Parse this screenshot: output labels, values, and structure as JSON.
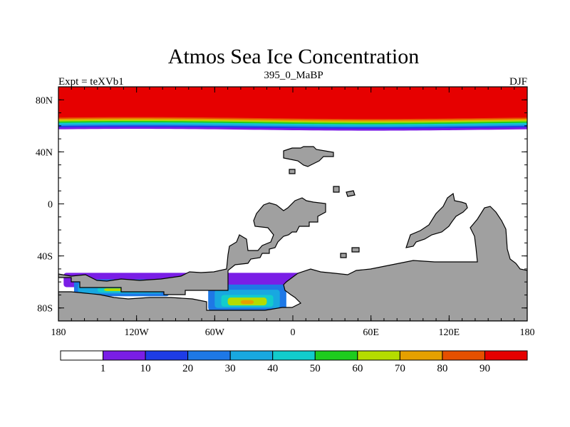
{
  "chart_data": {
    "type": "heatmap",
    "title": "Atmos Sea Ice Concentration",
    "left_label": "Expt = teXVb1",
    "center_label": "395_0_MaBP",
    "right_label": "DJF",
    "x_range": [
      -180,
      180
    ],
    "y_range": [
      -90,
      90
    ],
    "x_ticks": [
      {
        "value": -180,
        "label": "180"
      },
      {
        "value": -120,
        "label": "120W"
      },
      {
        "value": -60,
        "label": "60W"
      },
      {
        "value": 0,
        "label": "0"
      },
      {
        "value": 60,
        "label": "60E"
      },
      {
        "value": 120,
        "label": "120E"
      },
      {
        "value": 180,
        "label": "180"
      }
    ],
    "y_ticks": [
      {
        "value": 80,
        "label": "80N"
      },
      {
        "value": 40,
        "label": "40N"
      },
      {
        "value": 0,
        "label": "0"
      },
      {
        "value": -40,
        "label": "40S"
      },
      {
        "value": -80,
        "label": "80S"
      }
    ],
    "colorbar": {
      "levels": [
        "1",
        "10",
        "20",
        "30",
        "40",
        "50",
        "60",
        "70",
        "80",
        "90"
      ],
      "colors": [
        "#ffffff",
        "#7a1ee6",
        "#1e3ce6",
        "#1e78e6",
        "#18a8e0",
        "#12cccc",
        "#1ecc1e",
        "#b4dc00",
        "#e6a000",
        "#e65000",
        "#e60000"
      ]
    },
    "arctic_band": [
      {
        "value": 90,
        "lat_south": 66
      },
      {
        "value": 80,
        "lat_south": 65
      },
      {
        "value": 70,
        "lat_south": 64
      },
      {
        "value": 60,
        "lat_south": 63
      },
      {
        "value": 50,
        "lat_south": 62
      },
      {
        "value": 40,
        "lat_south": 61
      },
      {
        "value": 30,
        "lat_south": 60
      },
      {
        "value": 20,
        "lat_south": 59.5
      },
      {
        "value": 10,
        "lat_south": 58.5
      },
      {
        "value": 1,
        "lat_south": 57
      }
    ],
    "southern_ice_patches": [
      {
        "value": 1,
        "lon": [
          -176,
          7
        ],
        "lat": [
          -64,
          -53
        ]
      },
      {
        "value": 20,
        "lon": [
          -168,
          -95
        ],
        "lat": [
          -71,
          -58
        ]
      },
      {
        "value": 30,
        "lon": [
          -165,
          -100
        ],
        "lat": [
          -69,
          -61
        ]
      },
      {
        "value": 40,
        "lon": [
          -150,
          -112
        ],
        "lat": [
          -68,
          -64
        ]
      },
      {
        "value": 60,
        "lon": [
          -145,
          -130
        ],
        "lat": [
          -67,
          -65
        ]
      },
      {
        "value": 20,
        "lon": [
          -65,
          -5
        ],
        "lat": [
          -82,
          -62
        ]
      },
      {
        "value": 30,
        "lon": [
          -60,
          -10
        ],
        "lat": [
          -80,
          -66
        ]
      },
      {
        "value": 40,
        "lon": [
          -55,
          -15
        ],
        "lat": [
          -79,
          -70
        ]
      },
      {
        "value": 60,
        "lon": [
          -50,
          -20
        ],
        "lat": [
          -78,
          -72
        ]
      },
      {
        "value": 70,
        "lon": [
          -40,
          -30
        ],
        "lat": [
          -77,
          -74
        ]
      }
    ],
    "land_color": "#a0a0a0"
  }
}
